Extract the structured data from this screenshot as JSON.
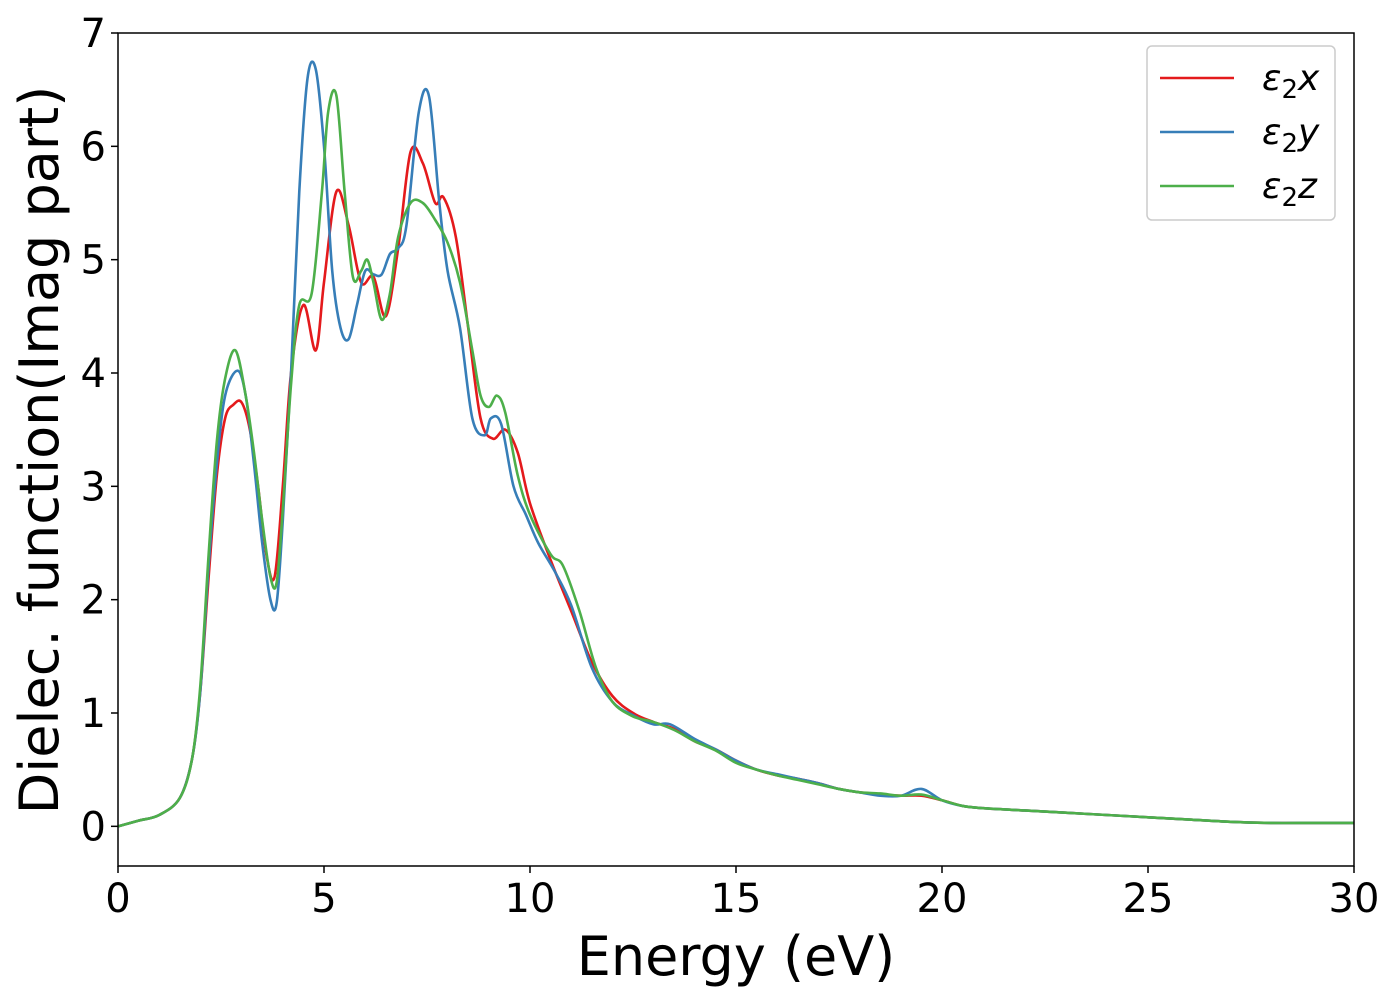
{
  "chart_data": {
    "type": "line",
    "xlabel": "Energy (eV)",
    "ylabel": "Dielec. function(Imag part)",
    "xlim": [
      0,
      30
    ],
    "ylim": [
      -0.35,
      7.0
    ],
    "xticks": [
      0,
      5,
      10,
      15,
      20,
      25,
      30
    ],
    "yticks": [
      0,
      1,
      2,
      3,
      4,
      5,
      6,
      7
    ],
    "grid": false,
    "legend_position": "top-right",
    "series": [
      {
        "name": "ε₂x",
        "legend_base": "ε",
        "legend_sub": "2",
        "legend_var": "x",
        "color": "#e41a1c",
        "x": [
          0,
          0.5,
          1.0,
          1.5,
          1.8,
          2.0,
          2.2,
          2.4,
          2.6,
          2.8,
          3.0,
          3.2,
          3.4,
          3.6,
          3.8,
          4.0,
          4.2,
          4.5,
          4.8,
          5.0,
          5.3,
          5.6,
          5.9,
          6.2,
          6.5,
          6.8,
          7.1,
          7.4,
          7.7,
          7.9,
          8.2,
          8.5,
          8.8,
          9.1,
          9.4,
          9.7,
          10.0,
          10.5,
          11.0,
          11.5,
          12.0,
          12.5,
          13.0,
          13.5,
          14.0,
          14.5,
          15.0,
          15.5,
          16.0,
          16.5,
          17.0,
          17.5,
          18.0,
          18.5,
          19.0,
          19.5,
          20.0,
          20.5,
          21,
          22,
          23,
          24,
          25,
          26,
          27,
          28,
          29,
          30
        ],
        "y": [
          0,
          0.05,
          0.1,
          0.25,
          0.6,
          1.2,
          2.2,
          3.1,
          3.6,
          3.72,
          3.74,
          3.5,
          3.0,
          2.4,
          2.2,
          3.0,
          4.0,
          4.6,
          4.2,
          4.8,
          5.6,
          5.3,
          4.8,
          4.85,
          4.5,
          5.1,
          5.95,
          5.85,
          5.5,
          5.55,
          5.2,
          4.4,
          3.6,
          3.42,
          3.5,
          3.3,
          2.85,
          2.35,
          1.9,
          1.45,
          1.15,
          1.0,
          0.92,
          0.86,
          0.75,
          0.68,
          0.58,
          0.5,
          0.45,
          0.42,
          0.38,
          0.33,
          0.3,
          0.28,
          0.27,
          0.27,
          0.23,
          0.18,
          0.16,
          0.14,
          0.12,
          0.1,
          0.08,
          0.06,
          0.04,
          0.03,
          0.03,
          0.03
        ]
      },
      {
        "name": "ε₂y",
        "legend_base": "ε",
        "legend_sub": "2",
        "legend_var": "y",
        "color": "#377eb8",
        "x": [
          0,
          0.5,
          1.0,
          1.5,
          1.8,
          2.0,
          2.2,
          2.4,
          2.6,
          2.9,
          3.1,
          3.3,
          3.5,
          3.7,
          3.85,
          4.0,
          4.2,
          4.4,
          4.6,
          4.8,
          5.0,
          5.2,
          5.4,
          5.6,
          5.8,
          6.0,
          6.2,
          6.4,
          6.6,
          6.8,
          7.0,
          7.3,
          7.55,
          7.8,
          8.0,
          8.3,
          8.6,
          8.9,
          9.05,
          9.3,
          9.6,
          9.9,
          10.2,
          10.6,
          11.0,
          11.5,
          12.0,
          12.5,
          13.0,
          13.4,
          14.0,
          14.5,
          15.0,
          15.5,
          16.0,
          16.5,
          17.0,
          17.5,
          18.0,
          18.5,
          19.0,
          19.5,
          20.0,
          20.5,
          21,
          22,
          23,
          24,
          25,
          26,
          27,
          28,
          29,
          30
        ],
        "y": [
          0,
          0.05,
          0.1,
          0.25,
          0.6,
          1.2,
          2.3,
          3.2,
          3.8,
          4.02,
          3.8,
          3.2,
          2.5,
          2.0,
          1.97,
          2.7,
          4.0,
          5.6,
          6.6,
          6.68,
          6.0,
          4.9,
          4.4,
          4.3,
          4.6,
          4.9,
          4.87,
          4.87,
          5.05,
          5.1,
          5.3,
          6.3,
          6.44,
          5.5,
          4.9,
          4.4,
          3.6,
          3.45,
          3.6,
          3.55,
          3.0,
          2.75,
          2.5,
          2.25,
          1.95,
          1.4,
          1.1,
          0.98,
          0.9,
          0.9,
          0.77,
          0.68,
          0.58,
          0.5,
          0.46,
          0.42,
          0.38,
          0.33,
          0.3,
          0.27,
          0.27,
          0.33,
          0.23,
          0.18,
          0.16,
          0.14,
          0.12,
          0.1,
          0.08,
          0.06,
          0.04,
          0.03,
          0.03,
          0.03
        ]
      },
      {
        "name": "ε₂z",
        "legend_base": "ε",
        "legend_sub": "2",
        "legend_var": "z",
        "color": "#4daf4a",
        "x": [
          0,
          0.5,
          1.0,
          1.5,
          1.8,
          2.0,
          2.2,
          2.4,
          2.6,
          2.85,
          3.1,
          3.3,
          3.5,
          3.7,
          3.85,
          4.0,
          4.2,
          4.4,
          4.7,
          4.95,
          5.1,
          5.3,
          5.5,
          5.7,
          5.9,
          6.05,
          6.2,
          6.4,
          6.6,
          6.8,
          7.1,
          7.4,
          7.7,
          8.0,
          8.3,
          8.6,
          8.8,
          9.0,
          9.2,
          9.4,
          9.7,
          10.0,
          10.5,
          10.8,
          11.2,
          11.6,
          12.0,
          12.5,
          13.0,
          13.5,
          14.0,
          14.5,
          15.0,
          15.5,
          16.0,
          16.5,
          17.0,
          17.5,
          18.0,
          18.5,
          19.0,
          19.5,
          20.0,
          20.5,
          21,
          22,
          23,
          24,
          25,
          26,
          27,
          28,
          29,
          30
        ],
        "y": [
          0,
          0.05,
          0.1,
          0.25,
          0.6,
          1.25,
          2.4,
          3.4,
          3.95,
          4.2,
          3.8,
          3.3,
          2.7,
          2.2,
          2.15,
          2.8,
          3.9,
          4.6,
          4.7,
          5.6,
          6.3,
          6.45,
          5.6,
          4.85,
          4.9,
          5.0,
          4.8,
          4.47,
          4.7,
          5.2,
          5.5,
          5.5,
          5.35,
          5.15,
          4.8,
          4.2,
          3.8,
          3.7,
          3.8,
          3.65,
          3.1,
          2.75,
          2.4,
          2.3,
          1.9,
          1.4,
          1.1,
          0.97,
          0.92,
          0.85,
          0.75,
          0.67,
          0.56,
          0.5,
          0.45,
          0.41,
          0.37,
          0.33,
          0.3,
          0.29,
          0.27,
          0.28,
          0.23,
          0.18,
          0.16,
          0.14,
          0.12,
          0.1,
          0.08,
          0.06,
          0.04,
          0.03,
          0.03,
          0.03
        ]
      }
    ]
  }
}
